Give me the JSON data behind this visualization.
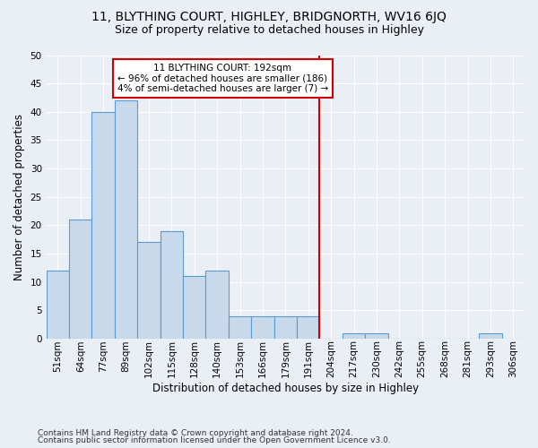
{
  "title1": "11, BLYTHING COURT, HIGHLEY, BRIDGNORTH, WV16 6JQ",
  "title2": "Size of property relative to detached houses in Highley",
  "xlabel": "Distribution of detached houses by size in Highley",
  "ylabel": "Number of detached properties",
  "footnote1": "Contains HM Land Registry data © Crown copyright and database right 2024.",
  "footnote2": "Contains public sector information licensed under the Open Government Licence v3.0.",
  "annotation_line1": "11 BLYTHING COURT: 192sqm",
  "annotation_line2": "← 96% of detached houses are smaller (186)",
  "annotation_line3": "4% of semi-detached houses are larger (7) →",
  "bin_labels": [
    "51sqm",
    "64sqm",
    "77sqm",
    "89sqm",
    "102sqm",
    "115sqm",
    "128sqm",
    "140sqm",
    "153sqm",
    "166sqm",
    "179sqm",
    "191sqm",
    "204sqm",
    "217sqm",
    "230sqm",
    "242sqm",
    "255sqm",
    "268sqm",
    "281sqm",
    "293sqm",
    "306sqm"
  ],
  "bar_heights": [
    12,
    21,
    40,
    42,
    17,
    19,
    11,
    12,
    4,
    4,
    4,
    4,
    0,
    1,
    1,
    0,
    0,
    0,
    0,
    1,
    0
  ],
  "bar_color": "#c8d9eb",
  "bar_edge_color": "#5b9bd5",
  "vline_color": "#cc0000",
  "vline_x": 11.5,
  "ylim": [
    0,
    50
  ],
  "yticks": [
    0,
    5,
    10,
    15,
    20,
    25,
    30,
    35,
    40,
    45,
    50
  ],
  "background_color": "#eaeef5",
  "plot_bg_color": "#eaeef5",
  "annotation_box_color": "#ffffff",
  "annotation_box_edgecolor": "#cc0000",
  "grid_color": "#ffffff",
  "title1_fontsize": 10,
  "title2_fontsize": 9,
  "xlabel_fontsize": 8.5,
  "ylabel_fontsize": 8.5,
  "tick_fontsize": 7.5,
  "annotation_fontsize": 7.5,
  "footnote_fontsize": 6.5
}
